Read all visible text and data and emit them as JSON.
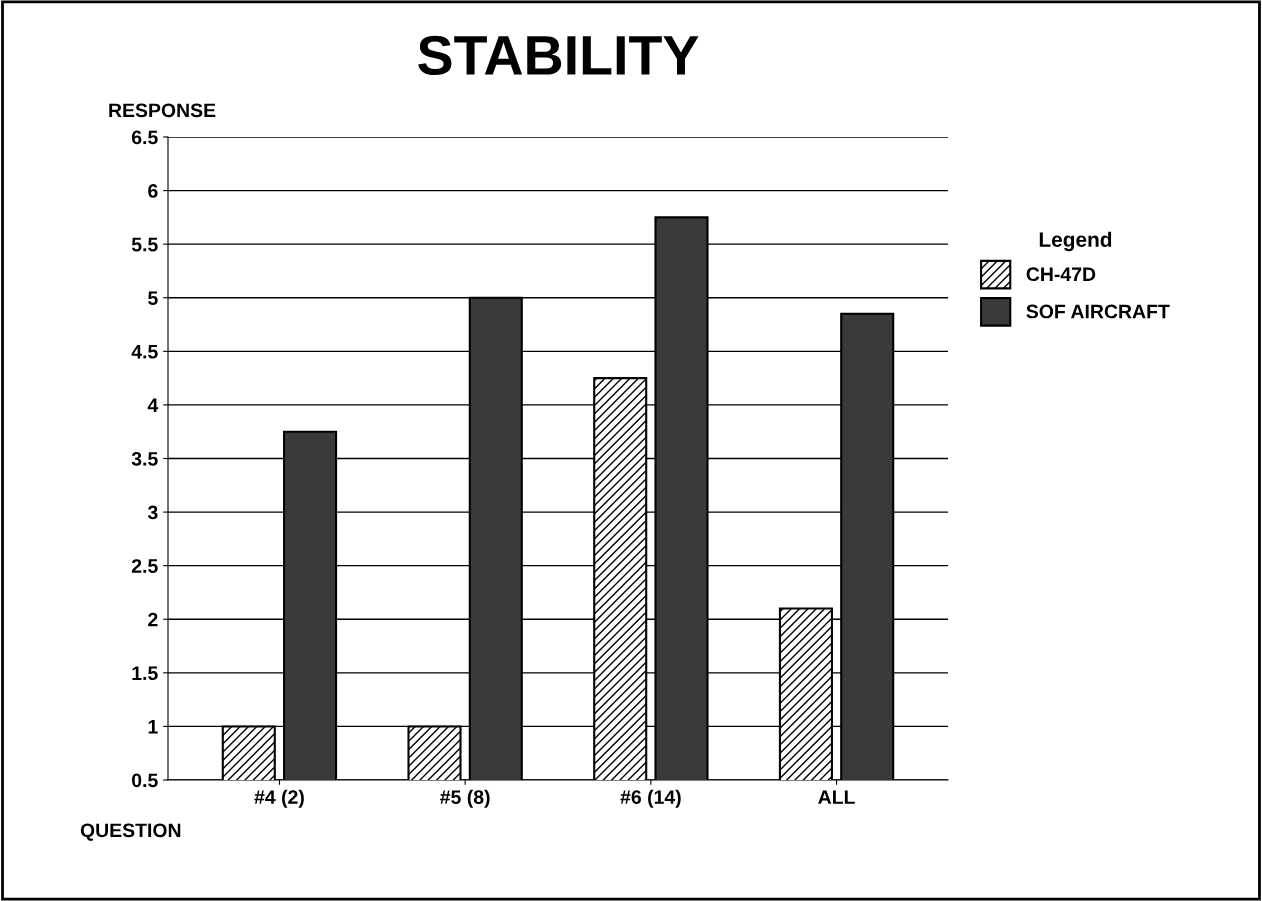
{
  "chart_data": {
    "type": "bar",
    "title": "STABILITY",
    "xlabel": "QUESTION",
    "ylabel": "RESPONSE",
    "legend_title": "Legend",
    "categories": [
      "#4 (2)",
      "#5 (8)",
      "#6 (14)",
      "ALL"
    ],
    "series": [
      {
        "name": "CH-47D",
        "color": "#000000",
        "values": [
          1.0,
          1.0,
          4.25,
          2.1
        ]
      },
      {
        "name": "SOF AIRCRAFT",
        "color": "#3a3a3a",
        "values": [
          3.75,
          5.0,
          5.75,
          4.85
        ]
      }
    ],
    "ylim": [
      0.5,
      6.5
    ],
    "yticks": [
      0.5,
      1,
      1.5,
      2,
      2.5,
      3,
      3.5,
      4,
      4.5,
      5,
      5.5,
      6,
      6.5
    ],
    "grid": "y",
    "legend": "right"
  }
}
